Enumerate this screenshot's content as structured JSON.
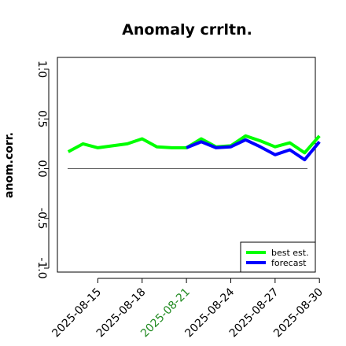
{
  "chart_data": {
    "type": "line",
    "title": "Anomaly crrltn.",
    "xlabel": "",
    "ylabel": "anom.corr.",
    "ylim": [
      -1.0,
      1.0
    ],
    "xlim": [
      "2025-08-12",
      "2025-08-31"
    ],
    "yticks": [
      -1.0,
      -0.5,
      0.0,
      0.5,
      1.0
    ],
    "ytick_labels": [
      "-1.0",
      "-0.5",
      "0.0",
      "0.5",
      "1.0"
    ],
    "xticks": [
      "2025-08-15",
      "2025-08-18",
      "2025-08-21",
      "2025-08-24",
      "2025-08-27",
      "2025-08-30"
    ],
    "xtick_labels": [
      "2025-08-15",
      "2025-08-18",
      "2025-08-21",
      "2025-08-24",
      "2025-08-27",
      "2025-08-30"
    ],
    "highlight_xtick": "2025-08-21",
    "highlight_color": "#228B22",
    "reference_line_y": 0.0,
    "legend_position": "bottom-right",
    "series": [
      {
        "name": "best est.",
        "color": "#00ff00",
        "x": [
          "2025-08-13",
          "2025-08-14",
          "2025-08-15",
          "2025-08-16",
          "2025-08-17",
          "2025-08-18",
          "2025-08-19",
          "2025-08-20",
          "2025-08-21",
          "2025-08-22",
          "2025-08-23",
          "2025-08-24",
          "2025-08-25",
          "2025-08-26",
          "2025-08-27",
          "2025-08-28",
          "2025-08-29",
          "2025-08-30"
        ],
        "values": [
          0.17,
          0.25,
          0.21,
          0.23,
          0.25,
          0.3,
          0.22,
          0.21,
          0.21,
          0.3,
          0.22,
          0.23,
          0.33,
          0.28,
          0.22,
          0.26,
          0.16,
          0.33
        ]
      },
      {
        "name": "forecast",
        "color": "#0000ff",
        "x": [
          "2025-08-21",
          "2025-08-22",
          "2025-08-23",
          "2025-08-24",
          "2025-08-25",
          "2025-08-26",
          "2025-08-27",
          "2025-08-28",
          "2025-08-29",
          "2025-08-30"
        ],
        "values": [
          0.21,
          0.27,
          0.21,
          0.22,
          0.29,
          0.22,
          0.14,
          0.19,
          0.09,
          0.27
        ]
      }
    ]
  }
}
